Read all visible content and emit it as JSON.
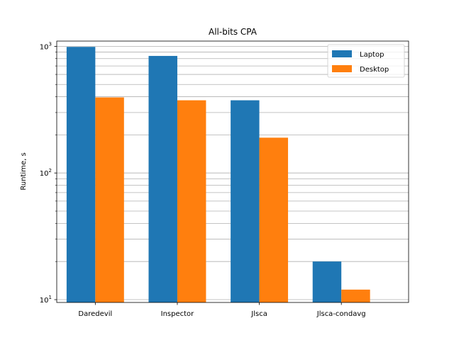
{
  "chart_data": {
    "type": "bar",
    "title": "All-bits CPA",
    "xlabel": "",
    "ylabel": "Runtime, s",
    "yscale": "log",
    "ylim": [
      9.5,
      1100
    ],
    "grid": "y-major-and-minor",
    "legend_position": "top-right",
    "categories": [
      "Daredevil",
      "Inspector",
      "Jlsca",
      "Jlsca-condavg"
    ],
    "series": [
      {
        "name": "Laptop",
        "color": "#1f77b4",
        "values": [
          990,
          840,
          375,
          20
        ]
      },
      {
        "name": "Desktop",
        "color": "#ff7f0e",
        "values": [
          395,
          375,
          190,
          12
        ]
      }
    ],
    "y_ticks": [
      {
        "value": 10,
        "base": "10",
        "exp": "1"
      },
      {
        "value": 100,
        "base": "10",
        "exp": "2"
      },
      {
        "value": 1000,
        "base": "10",
        "exp": "3"
      }
    ]
  }
}
